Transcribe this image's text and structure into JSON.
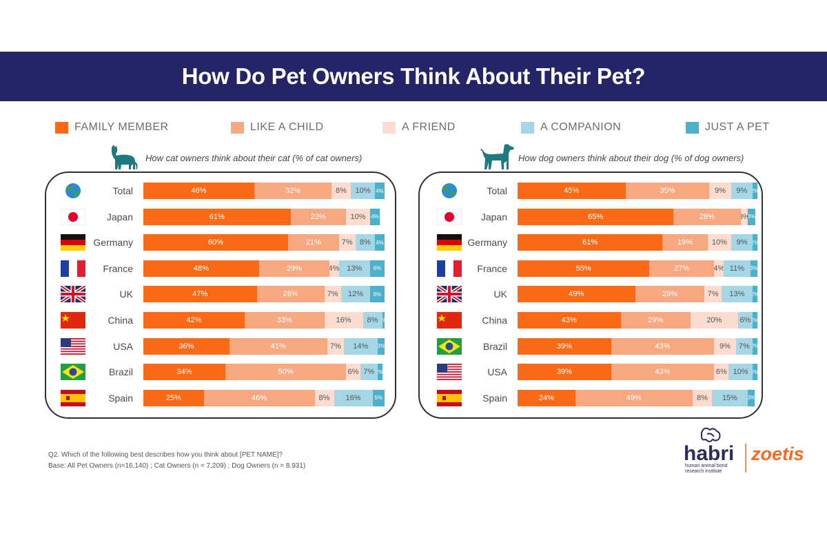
{
  "title": "How Do Pet Owners Think About Their Pet?",
  "legend": [
    {
      "label": "FAMILY MEMBER",
      "color": "#fa6a16"
    },
    {
      "label": "LIKE A CHILD",
      "color": "#f8a880"
    },
    {
      "label": "A FRIEND",
      "color": "#fcdcce"
    },
    {
      "label": "A COMPANION",
      "color": "#a4d6e5"
    },
    {
      "label": "JUST A PET",
      "color": "#4bb0cc"
    }
  ],
  "chart_data": [
    {
      "type": "bar",
      "stacked": true,
      "orientation": "horizontal",
      "title": "How cat owners think about their cat (% of cat owners)",
      "categories": [
        "Total",
        "Japan",
        "Germany",
        "France",
        "UK",
        "China",
        "USA",
        "Brazil",
        "Spain"
      ],
      "series": [
        {
          "name": "FAMILY MEMBER",
          "values": [
            46,
            61,
            60,
            48,
            47,
            42,
            36,
            34,
            25
          ]
        },
        {
          "name": "LIKE A CHILD",
          "values": [
            32,
            23,
            21,
            29,
            28,
            33,
            41,
            50,
            46
          ]
        },
        {
          "name": "A FRIEND",
          "values": [
            8,
            10,
            7,
            4,
            7,
            16,
            7,
            6,
            8
          ]
        },
        {
          "name": "A COMPANION",
          "values": [
            10,
            0,
            8,
            13,
            12,
            8,
            14,
            7,
            16
          ]
        },
        {
          "name": "JUST A PET",
          "values": [
            4,
            4,
            4,
            6,
            6,
            1,
            3,
            2,
            5
          ]
        }
      ]
    },
    {
      "type": "bar",
      "stacked": true,
      "orientation": "horizontal",
      "title": "How dog owners think about their  dog (% of dog owners)",
      "categories": [
        "Total",
        "Japan",
        "Germany",
        "France",
        "UK",
        "China",
        "Brazil",
        "USA",
        "Spain"
      ],
      "series": [
        {
          "name": "FAMILY MEMBER",
          "values": [
            45,
            65,
            61,
            55,
            49,
            43,
            39,
            39,
            24
          ]
        },
        {
          "name": "LIKE A CHILD",
          "values": [
            35,
            28,
            19,
            27,
            29,
            29,
            43,
            43,
            49
          ]
        },
        {
          "name": "A FRIEND",
          "values": [
            9,
            3,
            10,
            4,
            7,
            20,
            9,
            6,
            8
          ]
        },
        {
          "name": "A COMPANION",
          "values": [
            9,
            0,
            9,
            11,
            13,
            6,
            7,
            10,
            15
          ]
        },
        {
          "name": "JUST A PET",
          "values": [
            2,
            3,
            2,
            3,
            2,
            2,
            2,
            2,
            3
          ]
        }
      ]
    }
  ],
  "footnote": {
    "line1": "Q2. Which of the following best describes how you think about [PET NAME]?",
    "line2": "Base: All Pet Owners (n=16,140) ; Cat Owners (n = 7,209) ; Dog Owners (n = 8,931)"
  },
  "logos": {
    "habri": "habri",
    "habri_sub1": "human animal bond",
    "habri_sub2": "research institute",
    "zoetis": "zoetis"
  }
}
